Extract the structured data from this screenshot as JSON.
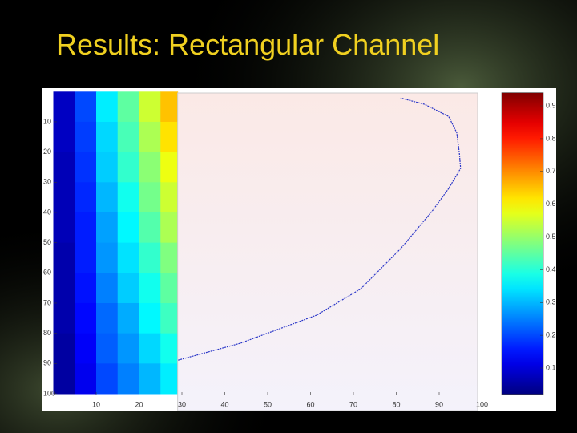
{
  "title": "Results: Rectangular Channel",
  "chart_data": {
    "type": "heatmap",
    "x_bins": [
      0,
      5,
      10,
      15,
      20,
      25,
      29
    ],
    "y_bins": [
      0,
      10,
      20,
      30,
      40,
      50,
      60,
      70,
      80,
      90,
      100
    ],
    "values": [
      [
        0.08,
        0.2,
        0.35,
        0.45,
        0.55,
        0.65
      ],
      [
        0.08,
        0.19,
        0.33,
        0.43,
        0.52,
        0.62
      ],
      [
        0.07,
        0.18,
        0.32,
        0.41,
        0.49,
        0.58
      ],
      [
        0.07,
        0.17,
        0.3,
        0.38,
        0.47,
        0.55
      ],
      [
        0.07,
        0.16,
        0.28,
        0.36,
        0.44,
        0.52
      ],
      [
        0.06,
        0.16,
        0.27,
        0.34,
        0.41,
        0.48
      ],
      [
        0.06,
        0.15,
        0.25,
        0.32,
        0.38,
        0.45
      ],
      [
        0.06,
        0.14,
        0.23,
        0.29,
        0.36,
        0.42
      ],
      [
        0.05,
        0.13,
        0.22,
        0.27,
        0.33,
        0.38
      ],
      [
        0.05,
        0.12,
        0.2,
        0.25,
        0.3,
        0.35
      ]
    ],
    "xlim": [
      0,
      100
    ],
    "ylim": [
      0,
      100
    ],
    "xticks": [
      10,
      20,
      30,
      40,
      50,
      60,
      70,
      80,
      90,
      100
    ],
    "yticks": [
      10,
      20,
      30,
      40,
      50,
      60,
      70,
      80,
      90,
      100
    ],
    "clim": [
      0.02,
      0.94
    ],
    "cticks": [
      0.1,
      0.2,
      0.3,
      0.4,
      0.5,
      0.6,
      0.7,
      0.8,
      0.9
    ],
    "colormap": "jet",
    "overlay": {
      "type": "line",
      "color": "#2a36c8",
      "x": [
        29.1,
        43.6,
        61.4,
        71.7,
        81,
        88.5,
        92.2,
        95,
        94.7,
        94.1,
        92.2,
        86.6,
        81
      ],
      "y": [
        88.9,
        83.3,
        74,
        65.3,
        52,
        39.3,
        32.1,
        25.4,
        20.2,
        13.6,
        8.2,
        4.2,
        2.1
      ]
    }
  }
}
